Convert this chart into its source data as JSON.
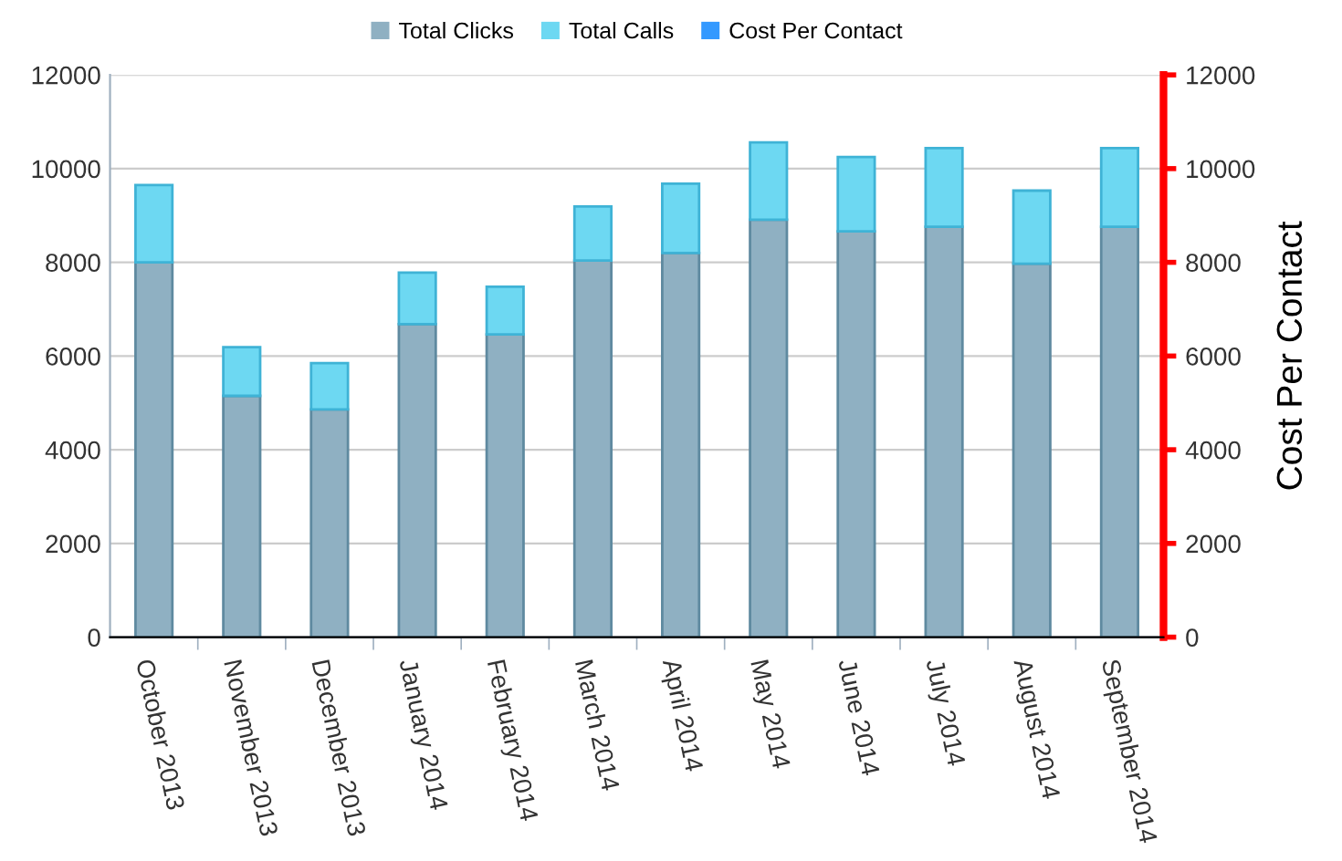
{
  "chart_data": {
    "type": "bar",
    "stacked": true,
    "y2label": "Cost Per Contact",
    "categories": [
      "October 2013",
      "November 2013",
      "December 2013",
      "January 2014",
      "February 2014",
      "March 2014",
      "April 2014",
      "May 2014",
      "June 2014",
      "July 2014",
      "August 2014",
      "September 2014"
    ],
    "series": [
      {
        "name": "Total Clicks",
        "color": "#8fb0c2",
        "values": [
          8000,
          5150,
          4860,
          6680,
          6460,
          8040,
          8200,
          8910,
          8660,
          8760,
          7970,
          8760
        ]
      },
      {
        "name": "Total Calls",
        "color": "#6dd8f2",
        "values": [
          1650,
          1040,
          990,
          1100,
          1020,
          1150,
          1480,
          1650,
          1590,
          1680,
          1560,
          1680
        ]
      },
      {
        "name": "Cost Per Contact",
        "color": "#3399ff",
        "type": "line",
        "values": [
          null,
          null,
          null,
          null,
          null,
          null,
          null,
          null,
          null,
          null,
          null,
          null
        ]
      }
    ],
    "ylim": [
      0,
      12000
    ],
    "yticks": [
      0,
      2000,
      4000,
      6000,
      8000,
      10000,
      12000
    ],
    "y2lim": [
      0,
      12000
    ],
    "y2ticks": [
      0,
      2000,
      4000,
      6000,
      8000,
      10000,
      12000
    ],
    "grid": "y",
    "legend": "top"
  }
}
